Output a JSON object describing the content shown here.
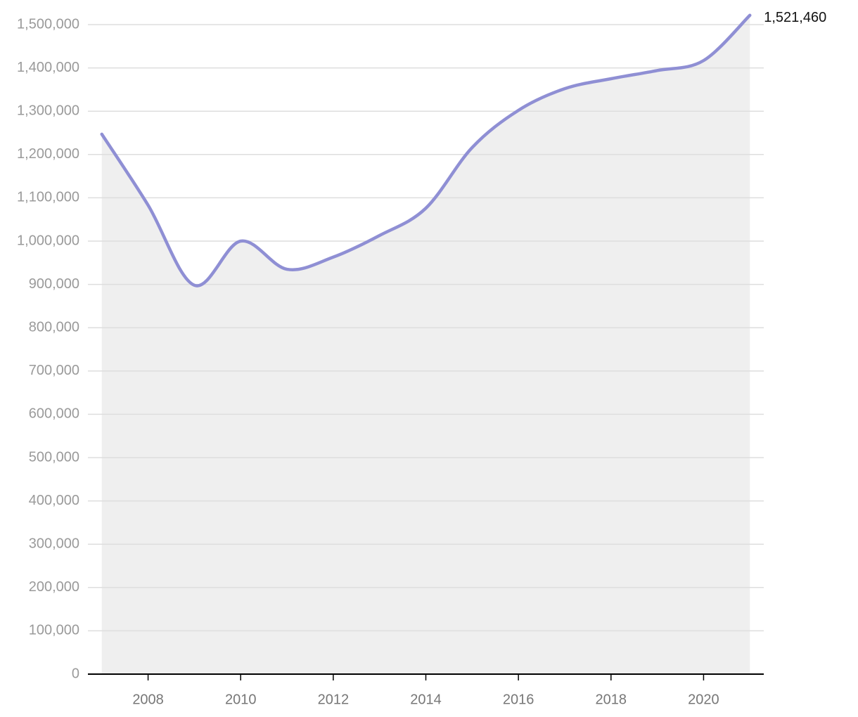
{
  "chart_data": {
    "type": "line",
    "x": [
      2007,
      2008,
      2009,
      2010,
      2011,
      2012,
      2013,
      2014,
      2015,
      2016,
      2017,
      2018,
      2019,
      2020,
      2021
    ],
    "series": [
      {
        "color": "#8f8fd4",
        "area_color": "#efefef",
        "values": [
          1247000,
          1083000,
          898000,
          1000000,
          935000,
          963000,
          1013000,
          1076000,
          1216000,
          1302000,
          1352000,
          1375000,
          1394000,
          1417000,
          1521460
        ],
        "value_labels": [
          null,
          null,
          null,
          null,
          null,
          null,
          null,
          null,
          null,
          null,
          null,
          null,
          null,
          null,
          "1,521,460"
        ]
      }
    ],
    "xlim": [
      2006.7,
      2021.3
    ],
    "xticks": [
      2008,
      2010,
      2012,
      2014,
      2016,
      2018,
      2020
    ],
    "ylim": [
      0,
      1500000
    ],
    "yticks": [
      0,
      {
        "value": 100000,
        "label": "100,000"
      },
      {
        "value": 200000,
        "label": "200,000"
      },
      {
        "value": 300000,
        "label": "300,000"
      },
      {
        "value": 400000,
        "label": "400,000"
      },
      {
        "value": 500000,
        "label": "500,000"
      },
      {
        "value": 600000,
        "label": "600,000"
      },
      {
        "value": 700000,
        "label": "700,000"
      },
      {
        "value": 800000,
        "label": "800,000"
      },
      {
        "value": 900000,
        "label": "900,000"
      },
      {
        "value": 1000000,
        "label": "1,000,000"
      },
      {
        "value": 1100000,
        "label": "1,100,000"
      },
      {
        "value": 1200000,
        "label": "1,200,000"
      },
      {
        "value": 1300000,
        "label": "1,300,000"
      },
      {
        "value": 1400000,
        "label": "1,400,000"
      },
      {
        "value": 1500000,
        "label": "1,500,000"
      }
    ],
    "grid": true
  }
}
